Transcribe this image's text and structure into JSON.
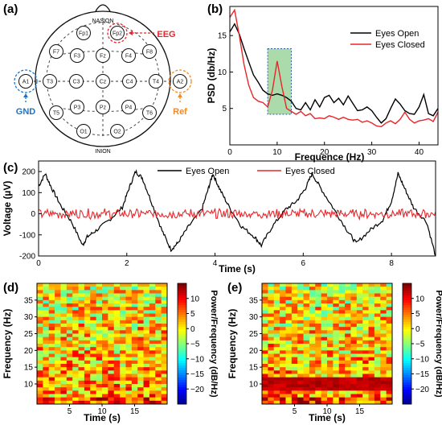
{
  "panels": {
    "a": "(a)",
    "b": "(b)",
    "c": "(c)",
    "d": "(d)",
    "e": "(e)"
  },
  "head_map": {
    "nasion": "NASION",
    "inion": "INION",
    "electrodes": [
      "Fp1",
      "Fp2",
      "F7",
      "F3",
      "Fz",
      "F4",
      "F8",
      "A1",
      "T3",
      "C3",
      "Cz",
      "C4",
      "T4",
      "A2",
      "T5",
      "P3",
      "Pz",
      "P4",
      "T6",
      "O1",
      "O2"
    ],
    "annotations": {
      "eeg": "EEG",
      "gnd": "GND",
      "ref": "Ref"
    },
    "colors": {
      "eeg": "#e8262a",
      "gnd": "#1b74c9",
      "ref": "#f08a24"
    }
  },
  "chart_data": [
    {
      "panel": "b",
      "type": "line",
      "xlabel": "Frequence (Hz)",
      "ylabel": "PSD (db/Hz)",
      "xlim": [
        0,
        44
      ],
      "ylim": [
        0,
        19
      ],
      "xticks": [
        0,
        10,
        20,
        30,
        40
      ],
      "yticks": [
        5,
        10,
        15
      ],
      "highlight": {
        "x": [
          8,
          13
        ],
        "y": [
          4.2,
          13.2
        ],
        "color": "#2e9e3e"
      },
      "legend_position": "top-right",
      "series": [
        {
          "name": "Eyes Open",
          "color": "#000000",
          "x": [
            0,
            1,
            2,
            3,
            4,
            5,
            6,
            7,
            8,
            9,
            10,
            11,
            12,
            13,
            14,
            15,
            16,
            17,
            18,
            19,
            20,
            21,
            22,
            23,
            24,
            25,
            26,
            27,
            28,
            29,
            30,
            31,
            32,
            33,
            34,
            35,
            36,
            37,
            38,
            39,
            40,
            41,
            42,
            43,
            44
          ],
          "y": [
            15.5,
            16.6,
            15.2,
            13.2,
            11.4,
            9.6,
            8.6,
            7.5,
            7.0,
            6.8,
            7.0,
            6.8,
            6.5,
            6.0,
            5.0,
            4.8,
            5.8,
            4.8,
            6.2,
            5.2,
            6.5,
            6.8,
            5.8,
            6.4,
            5.5,
            6.7,
            5.7,
            4.7,
            4.8,
            5.2,
            4.7,
            3.8,
            3.0,
            3.6,
            5.0,
            6.3,
            5.6,
            4.7,
            4.3,
            4.2,
            5.2,
            6.9,
            4.3,
            4.0,
            5.0
          ]
        },
        {
          "name": "Eyes Closed",
          "color": "#e8262a",
          "x": [
            0,
            1,
            2,
            3,
            4,
            5,
            6,
            7,
            8,
            9,
            10,
            11,
            12,
            13,
            14,
            15,
            16,
            17,
            18,
            19,
            20,
            21,
            22,
            23,
            24,
            25,
            26,
            27,
            28,
            29,
            30,
            31,
            32,
            33,
            34,
            35,
            36,
            37,
            38,
            39,
            40,
            41,
            42,
            43,
            44
          ],
          "y": [
            17.5,
            18.5,
            15.0,
            11.0,
            8.2,
            6.5,
            6.0,
            5.8,
            5.2,
            7.5,
            11.5,
            8.0,
            5.0,
            4.6,
            4.2,
            4.6,
            4.0,
            4.3,
            3.6,
            3.7,
            3.6,
            4.0,
            3.8,
            3.5,
            3.8,
            3.5,
            3.4,
            3.5,
            3.1,
            3.3,
            3.0,
            2.6,
            2.5,
            3.0,
            3.3,
            2.9,
            3.5,
            4.5,
            3.5,
            3.0,
            3.3,
            3.4,
            3.6,
            3.2,
            4.5
          ]
        }
      ]
    },
    {
      "panel": "c",
      "type": "line",
      "xlabel": "Time (s)",
      "ylabel": "Voltage (µV)",
      "xlim": [
        0,
        9
      ],
      "ylim": [
        -200,
        250
      ],
      "xticks": [
        0,
        2,
        4,
        6,
        8
      ],
      "yticks": [
        -200,
        -100,
        0,
        100,
        200
      ],
      "legend_position": "top",
      "series": [
        {
          "name": "Eyes Open",
          "color": "#000000",
          "x": [
            0,
            0.15,
            0.3,
            0.5,
            0.75,
            1.0,
            1.1,
            1.3,
            1.6,
            1.9,
            2.05,
            2.2,
            2.35,
            2.55,
            2.8,
            3.0,
            3.15,
            3.4,
            3.7,
            3.85,
            3.95,
            4.1,
            4.3,
            4.6,
            4.9,
            5.05,
            5.3,
            5.6,
            5.85,
            6.05,
            6.2,
            6.4,
            6.7,
            7.0,
            7.2,
            7.5,
            7.8,
            8.0,
            8.15,
            8.3,
            8.5,
            8.8,
            9.0
          ],
          "y": [
            130,
            190,
            120,
            40,
            -40,
            -150,
            -110,
            -80,
            -30,
            30,
            120,
            200,
            170,
            60,
            -80,
            -170,
            -140,
            -60,
            20,
            120,
            190,
            120,
            40,
            -60,
            -110,
            -150,
            -60,
            20,
            60,
            120,
            190,
            120,
            20,
            -80,
            -140,
            -80,
            -30,
            60,
            190,
            120,
            30,
            -40,
            -200
          ]
        },
        {
          "name": "Eyes Closed",
          "color": "#e8262a",
          "x": [
            0,
            9
          ],
          "y": [
            0,
            0
          ],
          "noise_amplitude": 25
        }
      ]
    },
    {
      "panel": "d",
      "type": "heatmap",
      "xlabel": "Time (s)",
      "ylabel": "Frequency (Hz)",
      "xlim": [
        0,
        20
      ],
      "ylim": [
        4,
        40
      ],
      "xticks": [
        5,
        10,
        15
      ],
      "yticks": [
        10,
        15,
        20,
        25,
        30,
        35
      ],
      "colorbar": {
        "label": "Power/Frequency (dB/Hz)",
        "range": [
          -25,
          15
        ],
        "ticks": [
          10,
          5,
          0,
          -5,
          -10,
          -15,
          -20
        ]
      },
      "band_peak_hz": null
    },
    {
      "panel": "e",
      "type": "heatmap",
      "xlabel": "Time (s)",
      "ylabel": "Frequency (Hz)",
      "xlim": [
        0,
        20
      ],
      "ylim": [
        4,
        40
      ],
      "xticks": [
        5,
        10,
        15
      ],
      "yticks": [
        10,
        15,
        20,
        25,
        30,
        35
      ],
      "colorbar": {
        "label": "Power/Frequency (dB/Hz)",
        "range": [
          -25,
          15
        ],
        "ticks": [
          10,
          5,
          0,
          -5,
          -10,
          -15,
          -20
        ]
      },
      "band_peak_hz": 10
    }
  ]
}
